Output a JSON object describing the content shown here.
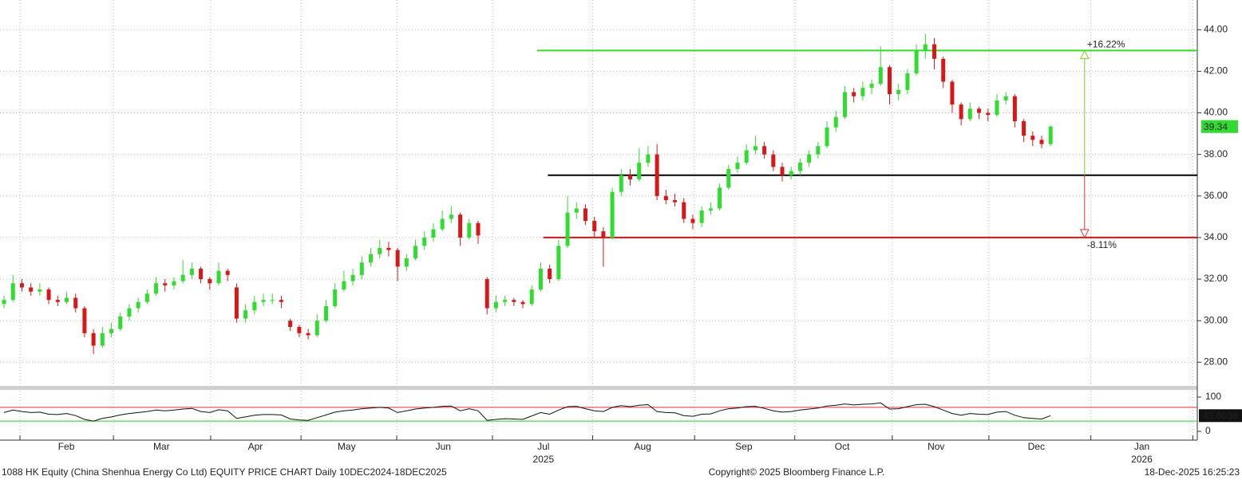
{
  "chart_data": {
    "type": "candlestick",
    "up_color": "#2fdc2f",
    "down_color": "#d81818",
    "xlim": [
      -0.45,
      133.4
    ],
    "ylim": [
      26.9,
      45.43
    ],
    "yticks": [
      {
        "value": 28,
        "label": "28.00"
      },
      {
        "value": 30,
        "label": "30.00"
      },
      {
        "value": 32,
        "label": "32.00"
      },
      {
        "value": 34,
        "label": "34.00"
      },
      {
        "value": 36,
        "label": "36.00"
      },
      {
        "value": 38,
        "label": "38.00"
      },
      {
        "value": 40,
        "label": "40.00"
      },
      {
        "value": 42,
        "label": "42.00"
      },
      {
        "value": 44,
        "label": "44.00"
      }
    ],
    "grid": true,
    "xticks": [
      {
        "value": 6.96,
        "label": "Feb"
      },
      {
        "value": 17.6,
        "label": "Mar"
      },
      {
        "value": 28.1,
        "label": "Apr"
      },
      {
        "value": 38.3,
        "label": "May"
      },
      {
        "value": 49.1,
        "label": "Jun"
      },
      {
        "value": 60.3,
        "label": "Jul"
      },
      {
        "value": 71.4,
        "label": "Aug"
      },
      {
        "value": 82.7,
        "label": "Sep"
      },
      {
        "value": 93.7,
        "label": "Oct"
      },
      {
        "value": 104.2,
        "label": "Nov"
      },
      {
        "value": 115.4,
        "label": "Dec"
      },
      {
        "value": 127.2,
        "label": "Jan"
      }
    ],
    "x_year_labels": [
      {
        "value": 60.3,
        "label": "2025"
      },
      {
        "value": 127.2,
        "label": "2026"
      }
    ],
    "x_gridlines": [
      1.78,
      12.23,
      23.1,
      33.2,
      43.9,
      54.6,
      65.8,
      77.2,
      88.4,
      99.3,
      110.1,
      121.5,
      132.9
    ],
    "candles": [
      [
        30.8,
        31.2,
        30.6,
        31.0
      ],
      [
        31.0,
        32.2,
        30.9,
        31.8
      ],
      [
        31.8,
        32.0,
        31.4,
        31.6
      ],
      [
        31.6,
        31.8,
        31.2,
        31.4
      ],
      [
        31.4,
        31.8,
        31.2,
        31.5
      ],
      [
        31.5,
        31.6,
        30.8,
        31.0
      ],
      [
        31.0,
        31.2,
        30.7,
        30.9
      ],
      [
        30.9,
        31.4,
        30.8,
        31.1
      ],
      [
        31.1,
        31.3,
        30.4,
        30.6
      ],
      [
        30.6,
        30.7,
        29.2,
        29.4
      ],
      [
        29.4,
        29.6,
        28.4,
        28.8
      ],
      [
        28.8,
        29.7,
        28.7,
        29.4
      ],
      [
        29.4,
        29.9,
        29.2,
        29.6
      ],
      [
        29.6,
        30.4,
        29.5,
        30.2
      ],
      [
        30.2,
        30.8,
        30.0,
        30.6
      ],
      [
        30.6,
        31.1,
        30.4,
        30.9
      ],
      [
        30.9,
        31.5,
        30.8,
        31.3
      ],
      [
        31.3,
        32.1,
        31.2,
        31.8
      ],
      [
        31.8,
        32.0,
        31.4,
        31.7
      ],
      [
        31.7,
        32.1,
        31.5,
        31.9
      ],
      [
        31.9,
        32.9,
        31.8,
        32.2
      ],
      [
        32.2,
        32.8,
        32.0,
        32.5
      ],
      [
        32.5,
        32.6,
        31.8,
        32.0
      ],
      [
        32.0,
        32.1,
        31.5,
        31.8
      ],
      [
        31.8,
        32.8,
        31.7,
        32.4
      ],
      [
        32.4,
        32.5,
        31.9,
        32.2
      ],
      [
        31.6,
        31.8,
        29.9,
        30.1
      ],
      [
        30.1,
        30.8,
        29.9,
        30.5
      ],
      [
        30.5,
        31.2,
        30.3,
        30.9
      ],
      [
        30.9,
        31.3,
        30.7,
        31.0
      ],
      [
        31.0,
        31.3,
        30.8,
        31.0
      ],
      [
        31.0,
        31.2,
        30.6,
        30.9
      ],
      [
        30.0,
        30.1,
        29.5,
        29.7
      ],
      [
        29.7,
        29.8,
        29.2,
        29.4
      ],
      [
        29.4,
        29.6,
        29.1,
        29.3
      ],
      [
        29.3,
        30.3,
        29.2,
        30.0
      ],
      [
        30.0,
        31.0,
        29.9,
        30.7
      ],
      [
        30.7,
        31.8,
        30.6,
        31.5
      ],
      [
        31.5,
        32.4,
        31.4,
        31.9
      ],
      [
        31.9,
        32.5,
        31.7,
        32.2
      ],
      [
        32.2,
        33.1,
        32.0,
        32.8
      ],
      [
        32.8,
        33.5,
        32.6,
        33.2
      ],
      [
        33.2,
        33.9,
        33.0,
        33.5
      ],
      [
        33.5,
        33.8,
        33.1,
        33.4
      ],
      [
        33.4,
        33.5,
        31.9,
        32.6
      ],
      [
        32.6,
        33.2,
        32.4,
        33.0
      ],
      [
        33.0,
        33.9,
        32.9,
        33.6
      ],
      [
        33.6,
        34.3,
        33.4,
        34.0
      ],
      [
        34.0,
        34.7,
        33.8,
        34.4
      ],
      [
        34.4,
        35.3,
        34.3,
        34.9
      ],
      [
        34.9,
        35.5,
        34.7,
        35.1
      ],
      [
        35.1,
        35.2,
        33.6,
        34.0
      ],
      [
        34.0,
        34.9,
        33.9,
        34.7
      ],
      [
        34.7,
        34.8,
        33.7,
        34.1
      ],
      [
        32.0,
        32.1,
        30.3,
        30.6
      ],
      [
        30.6,
        31.2,
        30.4,
        30.9
      ],
      [
        30.9,
        31.2,
        30.7,
        31.0
      ],
      [
        31.0,
        31.1,
        30.7,
        30.9
      ],
      [
        30.9,
        31.0,
        30.6,
        30.8
      ],
      [
        30.8,
        31.7,
        30.7,
        31.5
      ],
      [
        31.5,
        32.8,
        31.4,
        32.5
      ],
      [
        32.5,
        32.7,
        31.8,
        32.0
      ],
      [
        32.0,
        33.9,
        31.9,
        33.6
      ],
      [
        33.6,
        36.0,
        33.5,
        35.2
      ],
      [
        35.2,
        35.7,
        34.9,
        35.4
      ],
      [
        35.4,
        35.6,
        34.6,
        34.8
      ],
      [
        34.8,
        35.0,
        34.0,
        34.3
      ],
      [
        34.3,
        34.5,
        32.6,
        34.0
      ],
      [
        34.0,
        36.4,
        33.9,
        36.2
      ],
      [
        36.2,
        37.3,
        36.0,
        37.0
      ],
      [
        37.0,
        37.3,
        36.5,
        36.8
      ],
      [
        36.8,
        38.3,
        36.7,
        37.6
      ],
      [
        37.6,
        38.4,
        37.4,
        38.0
      ],
      [
        38.0,
        38.5,
        35.8,
        36.0
      ],
      [
        36.0,
        36.3,
        35.6,
        35.8
      ],
      [
        35.8,
        36.1,
        35.5,
        35.7
      ],
      [
        35.7,
        35.9,
        34.7,
        34.9
      ],
      [
        34.9,
        35.1,
        34.4,
        34.7
      ],
      [
        34.7,
        35.5,
        34.5,
        35.3
      ],
      [
        35.3,
        35.7,
        35.1,
        35.4
      ],
      [
        35.4,
        36.6,
        35.3,
        36.4
      ],
      [
        36.4,
        37.5,
        36.3,
        37.3
      ],
      [
        37.3,
        37.9,
        37.1,
        37.6
      ],
      [
        37.6,
        38.5,
        37.5,
        38.2
      ],
      [
        38.2,
        38.9,
        38.0,
        38.4
      ],
      [
        38.4,
        38.6,
        37.8,
        38.0
      ],
      [
        38.0,
        38.2,
        37.2,
        37.4
      ],
      [
        37.4,
        37.6,
        36.7,
        37.0
      ],
      [
        37.0,
        37.4,
        36.8,
        37.2
      ],
      [
        37.2,
        37.8,
        37.0,
        37.6
      ],
      [
        37.6,
        38.2,
        37.4,
        38.0
      ],
      [
        38.0,
        38.6,
        37.8,
        38.4
      ],
      [
        38.4,
        39.6,
        38.3,
        39.3
      ],
      [
        39.3,
        40.1,
        39.1,
        39.8
      ],
      [
        39.8,
        41.3,
        39.7,
        41.0
      ],
      [
        41.0,
        41.2,
        40.5,
        40.8
      ],
      [
        40.8,
        41.5,
        40.6,
        41.2
      ],
      [
        41.2,
        41.6,
        40.9,
        41.4
      ],
      [
        41.4,
        43.2,
        41.3,
        42.2
      ],
      [
        42.2,
        42.3,
        40.4,
        40.9
      ],
      [
        40.9,
        41.4,
        40.6,
        41.1
      ],
      [
        41.1,
        42.1,
        40.9,
        41.9
      ],
      [
        41.9,
        43.3,
        41.8,
        43.0
      ],
      [
        43.0,
        43.8,
        42.6,
        43.3
      ],
      [
        43.3,
        43.6,
        42.1,
        42.6
      ],
      [
        42.6,
        42.7,
        41.2,
        41.5
      ],
      [
        41.5,
        41.6,
        40.0,
        40.4
      ],
      [
        40.4,
        40.5,
        39.4,
        39.7
      ],
      [
        39.7,
        40.5,
        39.6,
        40.2
      ],
      [
        40.2,
        40.3,
        39.7,
        40.0
      ],
      [
        40.0,
        40.2,
        39.6,
        39.9
      ],
      [
        39.9,
        40.9,
        39.8,
        40.6
      ],
      [
        40.6,
        41.0,
        40.4,
        40.8
      ],
      [
        40.8,
        40.9,
        39.3,
        39.6
      ],
      [
        39.6,
        39.7,
        38.6,
        38.9
      ],
      [
        38.9,
        39.1,
        38.4,
        38.7
      ],
      [
        38.7,
        38.9,
        38.3,
        38.5
      ],
      [
        38.5,
        39.4,
        38.4,
        39.34
      ]
    ],
    "levels": [
      {
        "value": 43,
        "color": "#33dd22",
        "from": 59.6
      },
      {
        "value": 37,
        "color": "#000000",
        "from": 60.8
      },
      {
        "value": 34,
        "color": "#e01010",
        "from": 60.3
      }
    ],
    "measure": {
      "x": 120.8,
      "up_label": "+16.22%",
      "down_label": "-8.11%",
      "up_color": "#88cc22",
      "down_color": "#e03030"
    },
    "rsi": {
      "ylim": [
        0,
        100
      ],
      "yticks": [
        0,
        100
      ],
      "upper": 70,
      "lower": 30,
      "upper_color": "#e03030",
      "lower_color": "#22cc22",
      "color": "#111111",
      "values": [
        55,
        62,
        58,
        55,
        56,
        50,
        49,
        52,
        46,
        35,
        30,
        38,
        42,
        48,
        52,
        55,
        58,
        62,
        60,
        62,
        65,
        67,
        58,
        55,
        63,
        60,
        38,
        42,
        47,
        49,
        49,
        48,
        36,
        33,
        32,
        40,
        48,
        56,
        60,
        62,
        66,
        68,
        70,
        68,
        55,
        60,
        65,
        68,
        70,
        73,
        74,
        60,
        66,
        60,
        32,
        35,
        37,
        36,
        35,
        45,
        55,
        50,
        62,
        72,
        73,
        66,
        60,
        58,
        70,
        75,
        72,
        76,
        78,
        58,
        55,
        54,
        46,
        44,
        50,
        51,
        60,
        66,
        68,
        72,
        73,
        67,
        60,
        56,
        58,
        62,
        65,
        68,
        74,
        76,
        80,
        77,
        79,
        80,
        83,
        65,
        66,
        72,
        78,
        79,
        72,
        62,
        52,
        47,
        52,
        50,
        49,
        56,
        58,
        47,
        40,
        38,
        36,
        45.8038
      ]
    },
    "footer": {
      "left": "1088 HK Equity (China Shenhua Energy Co Ltd) EQUITY PRICE CHART Daily 10DEC2024-18DEC2025",
      "center": "Copyright© 2025 Bloomberg Finance L.P.",
      "right": "18-Dec-2025 16:25:23"
    }
  }
}
